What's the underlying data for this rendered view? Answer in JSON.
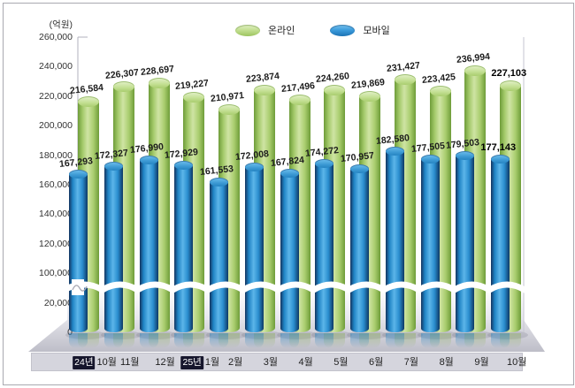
{
  "unit_label": "(억원)",
  "legend": [
    {
      "name": "온라인",
      "color": "#a8cc6b"
    },
    {
      "name": "모바일",
      "color": "#2b8fd0"
    }
  ],
  "chart_data": {
    "type": "bar",
    "title": "",
    "ylabel": "(억원)",
    "xlabel": "",
    "grid": false,
    "legend_position": "top-center",
    "ylim_display": [
      0,
      260000
    ],
    "axis_break": {
      "between": [
        20000,
        100000
      ]
    },
    "y_ticks": [
      "260,000",
      "240,000",
      "220,000",
      "200,000",
      "180,000",
      "160,000",
      "140,000",
      "120,000",
      "100,000",
      "20,000",
      "0"
    ],
    "categories": [
      {
        "year": "24년",
        "month": "10월"
      },
      {
        "month": "11월"
      },
      {
        "month": "12월"
      },
      {
        "year": "25년",
        "month": "1월"
      },
      {
        "month": "2월"
      },
      {
        "month": "3월"
      },
      {
        "month": "4월"
      },
      {
        "month": "5월"
      },
      {
        "month": "6월"
      },
      {
        "month": "7월"
      },
      {
        "month": "8월"
      },
      {
        "month": "9월"
      },
      {
        "month": "10월"
      }
    ],
    "series": [
      {
        "name": "온라인",
        "color": "#a8cc6b",
        "values": [
          216584,
          226307,
          228697,
          219227,
          210971,
          223874,
          217496,
          224260,
          219869,
          231427,
          223425,
          236994,
          227103
        ]
      },
      {
        "name": "모바일",
        "color": "#2b8fd0",
        "values": [
          167293,
          172327,
          176990,
          172929,
          161553,
          172008,
          167824,
          174272,
          170957,
          182580,
          177505,
          179503,
          177143
        ]
      }
    ],
    "emphasize_last": true
  }
}
